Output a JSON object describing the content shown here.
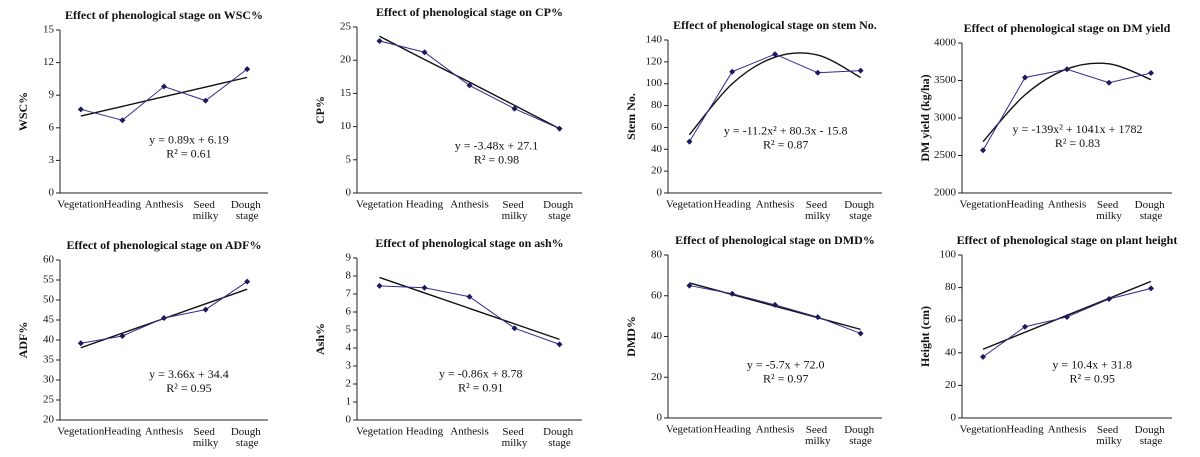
{
  "chart_data": [
    {
      "type": "line",
      "title": "Effect of phenological stage on WSC%",
      "y_label": "WSC%",
      "categories": [
        "Vegetation",
        "Heading",
        "Anthesis",
        "Seed milky",
        "Dough stage"
      ],
      "series": [
        {
          "color": "#2e2e8c",
          "values": [
            7.7,
            6.7,
            9.8,
            8.5,
            11.4
          ]
        }
      ],
      "trend": {
        "values": [
          7.08,
          7.97,
          8.86,
          9.75,
          10.64
        ]
      },
      "equation": "y = 0.89x + 6.19",
      "r_squared": "R² = 0.61",
      "ylim": [
        0,
        15
      ],
      "yticks": [
        0,
        3,
        6,
        9,
        12,
        15
      ]
    },
    {
      "type": "line",
      "title": "Effect of phenological stage on CP%",
      "y_label": "CP%",
      "categories": [
        "Vegetation",
        "Heading",
        "Anthesis",
        "Seed milky",
        "Dough stage"
      ],
      "series": [
        {
          "color": "#2e2e8c",
          "values": [
            22.9,
            21.2,
            16.2,
            12.7,
            9.7
          ]
        }
      ],
      "trend": {
        "values": [
          23.6,
          20.1,
          16.7,
          13.2,
          9.7
        ]
      },
      "equation": "y = -3.48x + 27.1",
      "r_squared": "R² = 0.98",
      "ylim": [
        0,
        25
      ],
      "yticks": [
        0,
        5,
        10,
        15,
        20,
        25
      ]
    },
    {
      "type": "line",
      "title": "Effect of phenological stage on stem No.",
      "y_label": "Stem No.",
      "categories": [
        "Vegetation",
        "Heading",
        "Anthesis",
        "Seed milky",
        "Dough stage"
      ],
      "series": [
        {
          "color": "#2e2e8c",
          "values": [
            47,
            111,
            127,
            110,
            112
          ]
        }
      ],
      "trend": {
        "values": [
          53.3,
          100,
          124.3,
          126.2,
          105.7
        ]
      },
      "equation": "y = -11.2x² + 80.3x - 15.8",
      "r_squared": "R² = 0.87",
      "ylim": [
        0,
        140
      ],
      "yticks": [
        0,
        20,
        40,
        60,
        80,
        100,
        120,
        140
      ]
    },
    {
      "type": "line",
      "title": "Effect of phenological stage on DM yield",
      "y_label": "DM yield (kg/ha)",
      "categories": [
        "Vegetation",
        "Heading",
        "Anthesis",
        "Seed milky",
        "Dough stage"
      ],
      "series": [
        {
          "color": "#2e2e8c",
          "values": [
            2570,
            3540,
            3650,
            3470,
            3600
          ]
        }
      ],
      "trend": {
        "values": [
          2684,
          3308,
          3654,
          3722,
          3512
        ]
      },
      "equation": "y = -139x² + 1041x + 1782",
      "r_squared": "R² = 0.83",
      "ylim": [
        2000,
        4000
      ],
      "yticks": [
        2000,
        2500,
        3000,
        3500,
        4000
      ]
    },
    {
      "type": "line",
      "title": "Effect of phenological stage on ADF%",
      "y_label": "ADF%",
      "categories": [
        "Vegetation",
        "Heading",
        "Anthesis",
        "Seed milky",
        "Dough stage"
      ],
      "series": [
        {
          "color": "#2e2e8c",
          "values": [
            39.2,
            41,
            45.5,
            47.6,
            54.6
          ]
        }
      ],
      "trend": {
        "values": [
          38.06,
          41.72,
          45.38,
          49.04,
          52.7
        ]
      },
      "equation": "y = 3.66x + 34.4",
      "r_squared": "R² = 0.95",
      "ylim": [
        20,
        60
      ],
      "yticks": [
        20,
        25,
        30,
        35,
        40,
        45,
        50,
        55,
        60
      ]
    },
    {
      "type": "line",
      "title": "Effect of phenological stage on ash%",
      "y_label": "Ash%",
      "categories": [
        "Vegetation",
        "Heading",
        "Anthesis",
        "Seed milky",
        "Dough stage"
      ],
      "series": [
        {
          "color": "#2e2e8c",
          "values": [
            7.45,
            7.35,
            6.85,
            5.1,
            4.2
          ]
        }
      ],
      "trend": {
        "values": [
          7.92,
          7.06,
          6.2,
          5.34,
          4.48
        ]
      },
      "equation": "y = -0.86x + 8.78",
      "r_squared": "R² = 0.91",
      "ylim": [
        0,
        9
      ],
      "yticks": [
        0,
        1,
        2,
        3,
        4,
        5,
        6,
        7,
        8,
        9
      ]
    },
    {
      "type": "line",
      "title": "Effect of phenological stage on DMD%",
      "y_label": "DMD%",
      "categories": [
        "Vegetation",
        "Heading",
        "Anthesis",
        "Seed milky",
        "Dough stage"
      ],
      "series": [
        {
          "color": "#2e2e8c",
          "values": [
            65,
            61,
            55.5,
            49.5,
            41.5
          ]
        }
      ],
      "trend": {
        "values": [
          66.3,
          60.6,
          54.9,
          49.2,
          43.5
        ]
      },
      "equation": "y = -5.7x + 72.0",
      "r_squared": "R² = 0.97",
      "ylim": [
        0,
        80
      ],
      "yticks": [
        0,
        20,
        40,
        60,
        80
      ]
    },
    {
      "type": "line",
      "title": "Effect of phenological stage on plant height",
      "y_label": "Height (cm)",
      "categories": [
        "Vegetation",
        "Heading",
        "Anthesis",
        "Seed milky",
        "Dough stage"
      ],
      "series": [
        {
          "color": "#2e2e8c",
          "values": [
            37.5,
            56,
            62,
            73,
            79.5
          ]
        }
      ],
      "trend": {
        "values": [
          42.2,
          52.6,
          63,
          73.4,
          83.8
        ]
      },
      "equation": "y = 10.4x + 31.8",
      "r_squared": "R² = 0.95",
      "ylim": [
        0,
        100
      ],
      "yticks": [
        0,
        20,
        40,
        60,
        80,
        100
      ]
    }
  ]
}
